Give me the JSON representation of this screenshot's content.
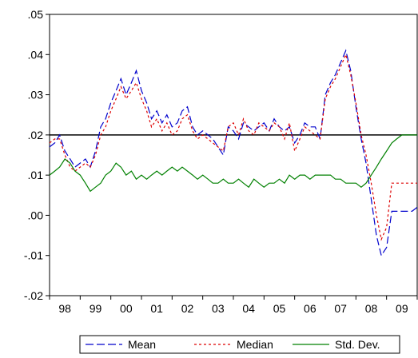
{
  "chart_data": {
    "type": "line",
    "title": "",
    "xlabel": "",
    "ylabel": "",
    "ylim": [
      -0.02,
      0.05
    ],
    "yticks": [
      -0.02,
      -0.01,
      0.0,
      0.01,
      0.02,
      0.03,
      0.04,
      0.05
    ],
    "ytick_labels": [
      "-.02",
      "-.01",
      ".00",
      ".01",
      ".02",
      ".03",
      ".04",
      ".05"
    ],
    "xlim": [
      1998.0,
      2010.0
    ],
    "xtick_labels": [
      "98",
      "99",
      "00",
      "01",
      "02",
      "03",
      "04",
      "05",
      "06",
      "07",
      "08",
      "09"
    ],
    "reference_line": 0.02,
    "grid": false,
    "legend_position": "bottom",
    "series": [
      {
        "name": "Mean",
        "color": "#0000cc",
        "style": "long-dash",
        "x": [
          1998.0,
          1998.17,
          1998.33,
          1998.5,
          1998.67,
          1998.83,
          1999.0,
          1999.17,
          1999.33,
          1999.5,
          1999.67,
          1999.83,
          2000.0,
          2000.17,
          2000.33,
          2000.5,
          2000.67,
          2000.83,
          2001.0,
          2001.17,
          2001.33,
          2001.5,
          2001.67,
          2001.83,
          2002.0,
          2002.17,
          2002.33,
          2002.5,
          2002.67,
          2002.83,
          2003.0,
          2003.17,
          2003.33,
          2003.5,
          2003.67,
          2003.83,
          2004.0,
          2004.17,
          2004.33,
          2004.5,
          2004.67,
          2004.83,
          2005.0,
          2005.17,
          2005.33,
          2005.5,
          2005.67,
          2005.83,
          2006.0,
          2006.17,
          2006.33,
          2006.5,
          2006.67,
          2006.83,
          2007.0,
          2007.17,
          2007.33,
          2007.5,
          2007.67,
          2007.83,
          2008.0,
          2008.17,
          2008.33,
          2008.5,
          2008.67,
          2008.83,
          2009.0,
          2009.17,
          2009.33,
          2009.5,
          2009.67,
          2009.83,
          2010.0
        ],
        "values": [
          0.017,
          0.018,
          0.02,
          0.016,
          0.014,
          0.012,
          0.013,
          0.014,
          0.012,
          0.016,
          0.022,
          0.024,
          0.028,
          0.031,
          0.034,
          0.03,
          0.033,
          0.036,
          0.031,
          0.028,
          0.024,
          0.026,
          0.023,
          0.025,
          0.022,
          0.023,
          0.026,
          0.027,
          0.022,
          0.02,
          0.021,
          0.02,
          0.019,
          0.017,
          0.015,
          0.022,
          0.021,
          0.019,
          0.023,
          0.022,
          0.021,
          0.022,
          0.023,
          0.021,
          0.024,
          0.022,
          0.021,
          0.022,
          0.018,
          0.02,
          0.023,
          0.022,
          0.022,
          0.019,
          0.03,
          0.033,
          0.035,
          0.038,
          0.041,
          0.036,
          0.027,
          0.019,
          0.013,
          0.004,
          -0.005,
          -0.01,
          -0.008,
          0.001,
          0.001,
          0.001,
          0.001,
          0.001,
          0.002
        ]
      },
      {
        "name": "Median",
        "color": "#dd0000",
        "style": "short-dash",
        "x": [
          1998.0,
          1998.17,
          1998.33,
          1998.5,
          1998.67,
          1998.83,
          1999.0,
          1999.17,
          1999.33,
          1999.5,
          1999.67,
          1999.83,
          2000.0,
          2000.17,
          2000.33,
          2000.5,
          2000.67,
          2000.83,
          2001.0,
          2001.17,
          2001.33,
          2001.5,
          2001.67,
          2001.83,
          2002.0,
          2002.17,
          2002.33,
          2002.5,
          2002.67,
          2002.83,
          2003.0,
          2003.17,
          2003.33,
          2003.5,
          2003.67,
          2003.83,
          2004.0,
          2004.17,
          2004.33,
          2004.5,
          2004.67,
          2004.83,
          2005.0,
          2005.17,
          2005.33,
          2005.5,
          2005.67,
          2005.83,
          2006.0,
          2006.17,
          2006.33,
          2006.5,
          2006.67,
          2006.83,
          2007.0,
          2007.17,
          2007.33,
          2007.5,
          2007.67,
          2007.83,
          2008.0,
          2008.17,
          2008.33,
          2008.5,
          2008.67,
          2008.83,
          2009.0,
          2009.17,
          2009.33,
          2009.5,
          2009.67,
          2009.83,
          2010.0
        ],
        "values": [
          0.018,
          0.019,
          0.019,
          0.015,
          0.012,
          0.011,
          0.012,
          0.013,
          0.012,
          0.015,
          0.02,
          0.022,
          0.026,
          0.029,
          0.032,
          0.029,
          0.031,
          0.033,
          0.029,
          0.026,
          0.022,
          0.024,
          0.021,
          0.023,
          0.02,
          0.021,
          0.024,
          0.025,
          0.021,
          0.019,
          0.02,
          0.019,
          0.018,
          0.017,
          0.016,
          0.022,
          0.023,
          0.02,
          0.024,
          0.021,
          0.02,
          0.023,
          0.022,
          0.021,
          0.023,
          0.022,
          0.019,
          0.023,
          0.016,
          0.019,
          0.022,
          0.021,
          0.02,
          0.019,
          0.029,
          0.032,
          0.034,
          0.037,
          0.04,
          0.035,
          0.028,
          0.02,
          0.015,
          0.008,
          0.0,
          -0.006,
          -0.003,
          0.008,
          0.008,
          0.008,
          0.008,
          0.008,
          0.008
        ]
      },
      {
        "name": "Std. Dev.",
        "color": "#008000",
        "style": "solid",
        "x": [
          1998.0,
          1998.17,
          1998.33,
          1998.5,
          1998.67,
          1998.83,
          1999.0,
          1999.17,
          1999.33,
          1999.5,
          1999.67,
          1999.83,
          2000.0,
          2000.17,
          2000.33,
          2000.5,
          2000.67,
          2000.83,
          2001.0,
          2001.17,
          2001.33,
          2001.5,
          2001.67,
          2001.83,
          2002.0,
          2002.17,
          2002.33,
          2002.5,
          2002.67,
          2002.83,
          2003.0,
          2003.17,
          2003.33,
          2003.5,
          2003.67,
          2003.83,
          2004.0,
          2004.17,
          2004.33,
          2004.5,
          2004.67,
          2004.83,
          2005.0,
          2005.17,
          2005.33,
          2005.5,
          2005.67,
          2005.83,
          2006.0,
          2006.17,
          2006.33,
          2006.5,
          2006.67,
          2006.83,
          2007.0,
          2007.17,
          2007.33,
          2007.5,
          2007.67,
          2007.83,
          2008.0,
          2008.17,
          2008.33,
          2008.5,
          2008.67,
          2008.83,
          2009.0,
          2009.17,
          2009.33,
          2009.5,
          2009.67,
          2009.83,
          2010.0
        ],
        "values": [
          0.01,
          0.011,
          0.012,
          0.014,
          0.013,
          0.011,
          0.01,
          0.008,
          0.006,
          0.007,
          0.008,
          0.01,
          0.011,
          0.013,
          0.012,
          0.01,
          0.011,
          0.009,
          0.01,
          0.009,
          0.01,
          0.011,
          0.01,
          0.011,
          0.012,
          0.011,
          0.012,
          0.011,
          0.01,
          0.009,
          0.01,
          0.009,
          0.008,
          0.008,
          0.009,
          0.008,
          0.008,
          0.009,
          0.008,
          0.007,
          0.009,
          0.008,
          0.007,
          0.008,
          0.008,
          0.009,
          0.008,
          0.01,
          0.009,
          0.01,
          0.01,
          0.009,
          0.01,
          0.01,
          0.01,
          0.01,
          0.009,
          0.009,
          0.008,
          0.008,
          0.008,
          0.007,
          0.008,
          0.01,
          0.012,
          0.014,
          0.016,
          0.018,
          0.019,
          0.02,
          0.02,
          0.02,
          0.02
        ]
      }
    ]
  }
}
